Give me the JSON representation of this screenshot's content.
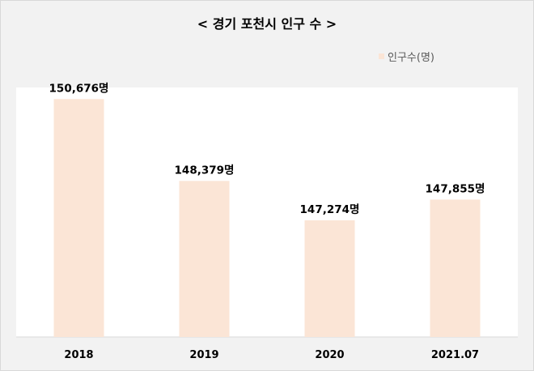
{
  "chart_data": {
    "type": "bar",
    "title": "< 경기 포천시 인구 수 >",
    "categories": [
      "2018",
      "2019",
      "2020",
      "2021.07"
    ],
    "series": [
      {
        "name": "인구수(명)",
        "values": [
          150676,
          148379,
          147274,
          147855
        ],
        "color": "#fbe5d6"
      }
    ],
    "data_labels": [
      "150,676명",
      "148,379명",
      "147,274명",
      "147,855명"
    ],
    "ylim": [
      144000,
      151000
    ],
    "grid": false,
    "legend_position": "top-right",
    "plot_background": "#ffffff",
    "page_background": "#f2f2f2"
  }
}
